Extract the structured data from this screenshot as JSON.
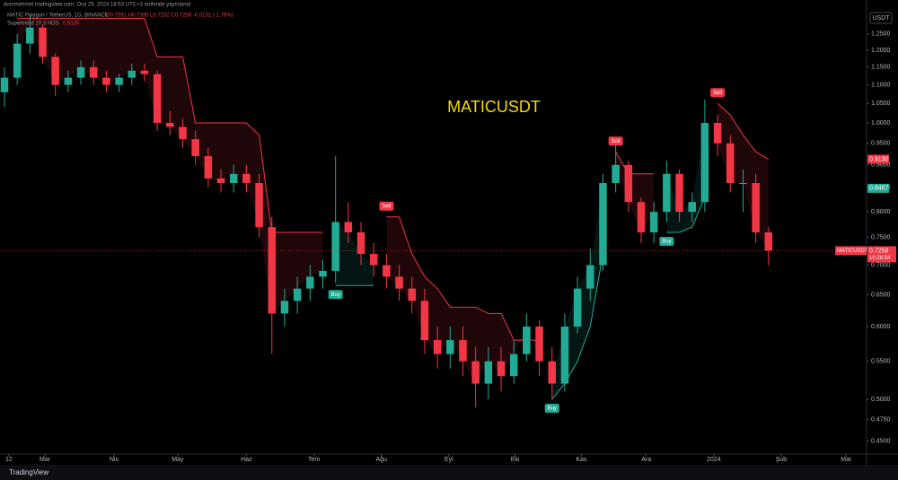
{
  "header": {
    "publisher": "dursmehmet tradingview.com, Oca 25, 2024 18:53 UTC+3 tarihinde yayınlandı",
    "symbol_line": "MATIC Polygon / TetherUS, 1G, BINANCE",
    "ohlc_line": "O0.7391 H0.7395 L0.7232 C0.7258 -0.0132 (-1.78%)",
    "indicator_line": "Supertrend 10 3 HOS",
    "indicator_value": "0.9130",
    "currency": "USDT",
    "logo": "TradingView"
  },
  "chart_data": {
    "type": "candlestick",
    "title": "MATICUSDT",
    "title_color": "#f5d90a",
    "log_scale": true,
    "up_color": "#22ab94",
    "down_color": "#f23645",
    "xlim": [
      -0.35,
      67.7
    ],
    "xticks": [
      {
        "value": 0.35,
        "label": "12"
      },
      {
        "value": 3.18,
        "label": "Mar"
      },
      {
        "value": 8.6,
        "label": "Nis"
      },
      {
        "value": 13.6,
        "label": "May"
      },
      {
        "value": 19.0,
        "label": "Haz"
      },
      {
        "value": 24.3,
        "label": "Tem"
      },
      {
        "value": 29.6,
        "label": "Ağu"
      },
      {
        "value": 34.9,
        "label": "Eyl"
      },
      {
        "value": 40.1,
        "label": "Eki"
      },
      {
        "value": 45.3,
        "label": "Kas"
      },
      {
        "value": 50.4,
        "label": "Ara"
      },
      {
        "value": 55.7,
        "label": "2024"
      },
      {
        "value": 61.0,
        "label": "Şub"
      },
      {
        "value": 66.1,
        "label": "Mar"
      }
    ],
    "ylim": [
      0.432,
      1.307
    ],
    "yticks": [
      {
        "value": 1.25,
        "label": "1.2500"
      },
      {
        "value": 1.2,
        "label": "1.2000"
      },
      {
        "value": 1.15,
        "label": "1.1500"
      },
      {
        "value": 1.1,
        "label": "1.1000"
      },
      {
        "value": 1.05,
        "label": "1.0500"
      },
      {
        "value": 1,
        "label": "1.0000"
      },
      {
        "value": 0.95,
        "label": "0.9500"
      },
      {
        "value": 0.9,
        "label": "0.9000"
      },
      {
        "value": 0.85,
        "label": "0.8500"
      },
      {
        "value": 0.8,
        "label": "0.8000"
      },
      {
        "value": 0.75,
        "label": "0.7500"
      },
      {
        "value": 0.7,
        "label": "0.7000"
      },
      {
        "value": 0.65,
        "label": "0.6500"
      },
      {
        "value": 0.6,
        "label": "0.6000"
      },
      {
        "value": 0.55,
        "label": "0.5500"
      },
      {
        "value": 0.5,
        "label": "0.5000"
      },
      {
        "value": 0.475,
        "label": "0.4750"
      },
      {
        "value": 0.45,
        "label": "0.4500"
      }
    ],
    "open": [
      1.08,
      1.12,
      1.22,
      1.27,
      1.18,
      1.1,
      1.12,
      1.15,
      1.12,
      1.1,
      1.12,
      1.14,
      1.13,
      1.0,
      0.99,
      0.96,
      0.92,
      0.87,
      0.86,
      0.88,
      0.86,
      0.77,
      0.62,
      0.64,
      0.66,
      0.68,
      0.69,
      0.78,
      0.76,
      0.72,
      0.7,
      0.68,
      0.66,
      0.64,
      0.58,
      0.56,
      0.58,
      0.55,
      0.52,
      0.55,
      0.53,
      0.56,
      0.6,
      0.55,
      0.52,
      0.6,
      0.66,
      0.7,
      0.86,
      0.9,
      0.82,
      0.76,
      0.8,
      0.88,
      0.8,
      0.82,
      1.0,
      0.95,
      0.86,
      0.86,
      0.76
    ],
    "high": [
      1.15,
      1.25,
      1.31,
      1.28,
      1.19,
      1.14,
      1.17,
      1.17,
      1.14,
      1.13,
      1.16,
      1.16,
      1.14,
      1.03,
      1.01,
      0.98,
      0.94,
      0.89,
      0.9,
      0.9,
      0.88,
      0.79,
      0.66,
      0.68,
      0.7,
      0.71,
      0.92,
      0.82,
      0.78,
      0.74,
      0.72,
      0.7,
      0.68,
      0.66,
      0.6,
      0.6,
      0.6,
      0.57,
      0.57,
      0.57,
      0.58,
      0.62,
      0.61,
      0.57,
      0.62,
      0.68,
      0.73,
      0.88,
      0.95,
      0.91,
      0.83,
      0.82,
      0.91,
      0.89,
      0.84,
      1.06,
      1.02,
      0.97,
      0.89,
      0.88,
      0.77
    ],
    "low": [
      1.04,
      1.1,
      1.19,
      1.16,
      1.07,
      1.08,
      1.1,
      1.1,
      1.08,
      1.08,
      1.1,
      1.11,
      0.98,
      0.97,
      0.94,
      0.9,
      0.85,
      0.84,
      0.84,
      0.84,
      0.75,
      0.56,
      0.6,
      0.62,
      0.64,
      0.66,
      0.67,
      0.74,
      0.7,
      0.68,
      0.66,
      0.64,
      0.62,
      0.56,
      0.54,
      0.54,
      0.53,
      0.49,
      0.5,
      0.51,
      0.52,
      0.55,
      0.53,
      0.5,
      0.51,
      0.59,
      0.64,
      0.69,
      0.84,
      0.8,
      0.74,
      0.74,
      0.78,
      0.78,
      0.78,
      0.8,
      0.92,
      0.84,
      0.8,
      0.74,
      0.7
    ],
    "close": [
      1.12,
      1.22,
      1.27,
      1.18,
      1.1,
      1.12,
      1.15,
      1.12,
      1.1,
      1.12,
      1.14,
      1.13,
      1.0,
      0.99,
      0.96,
      0.92,
      0.87,
      0.86,
      0.88,
      0.86,
      0.77,
      0.62,
      0.64,
      0.66,
      0.68,
      0.69,
      0.78,
      0.76,
      0.72,
      0.7,
      0.68,
      0.66,
      0.64,
      0.58,
      0.56,
      0.58,
      0.55,
      0.52,
      0.55,
      0.53,
      0.56,
      0.6,
      0.55,
      0.52,
      0.6,
      0.66,
      0.7,
      0.86,
      0.9,
      0.82,
      0.76,
      0.8,
      0.88,
      0.8,
      0.82,
      1.0,
      0.95,
      0.86,
      0.86,
      0.76,
      0.7258
    ],
    "supertrend": [
      {
        "color": "#22ab94",
        "values": [
          1.04,
          null,
          null,
          null,
          null,
          null,
          null,
          null,
          null,
          null,
          null,
          null,
          null,
          null,
          null,
          null,
          null,
          null,
          null,
          null,
          null,
          null,
          null,
          null,
          null,
          null,
          0.665,
          0.665,
          0.665,
          0.665,
          null,
          null,
          null,
          null,
          null,
          null,
          null,
          null,
          null,
          null,
          null,
          null,
          null,
          0.5,
          0.52,
          0.55,
          0.6,
          0.72,
          null,
          null,
          null,
          null,
          0.76,
          0.76,
          0.77,
          0.83,
          null,
          null,
          null,
          null,
          null
        ]
      },
      {
        "color": "#f23645",
        "values": [
          null,
          1.3,
          1.3,
          1.3,
          1.3,
          1.3,
          1.3,
          1.3,
          1.3,
          1.3,
          1.3,
          1.3,
          1.18,
          1.18,
          1.18,
          1.0,
          1.0,
          1.0,
          1.0,
          1.0,
          0.97,
          0.76,
          0.76,
          0.76,
          0.76,
          0.76,
          null,
          null,
          null,
          null,
          0.79,
          0.79,
          0.72,
          0.68,
          0.66,
          0.63,
          0.63,
          0.63,
          0.62,
          0.62,
          0.58,
          0.58,
          0.58,
          null,
          null,
          null,
          null,
          null,
          0.93,
          0.88,
          0.88,
          0.88,
          null,
          null,
          null,
          null,
          1.05,
          1.02,
          0.97,
          0.93,
          0.913
        ]
      }
    ],
    "signals": [
      null,
      "Buy",
      "Sell",
      "Buy",
      "Sell",
      "Buy",
      "Sell"
    ],
    "markers": [
      {
        "value": 0.913,
        "label": "0.9130",
        "color": "#f23645"
      },
      {
        "value": 0.8487,
        "label": "0.8487",
        "color": "#22ab94"
      }
    ],
    "last_price": {
      "value": 0.7258,
      "label": "0.7258",
      "symbol": "MATICUSDT",
      "countdown": "10:26:54",
      "color": "#f23645"
    }
  }
}
